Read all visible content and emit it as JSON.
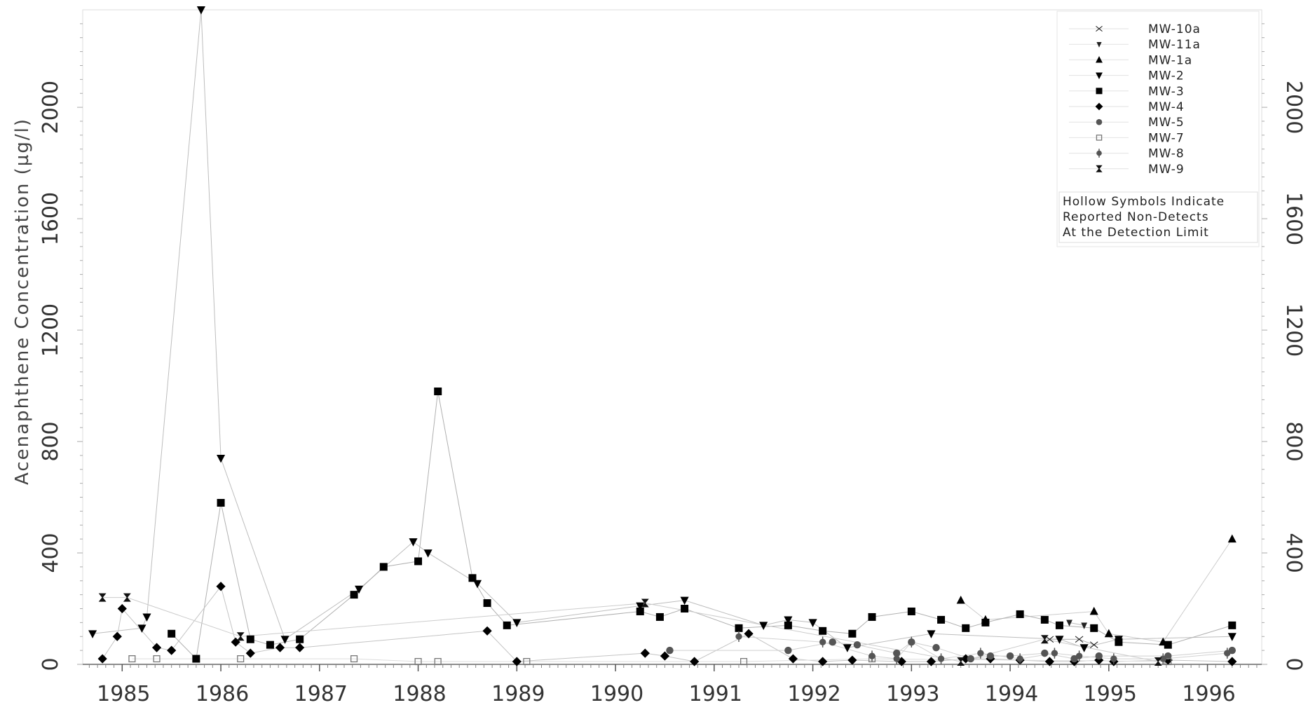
{
  "chart_data": {
    "type": "scatter",
    "title": "",
    "ylabel": "Acenaphthene Concentration (µg/l)",
    "xlabel": "",
    "xlim": [
      1984.6,
      1996.55
    ],
    "ylim": [
      0,
      2350
    ],
    "x_ticks": [
      "1985",
      "1986",
      "1987",
      "1988",
      "1989",
      "1990",
      "1991",
      "1992",
      "1993",
      "1994",
      "1995",
      "1996"
    ],
    "y_ticks": [
      "0",
      "400",
      "800",
      "1200",
      "1600",
      "2000"
    ],
    "y_ticks_right": [
      "0",
      "400",
      "800",
      "1200",
      "1600",
      "2000"
    ],
    "grid": false,
    "legend_position": "top-right",
    "legend_note": [
      "Hollow Symbols Indicate",
      "Reported Non-Detects",
      "At the Detection Limit"
    ],
    "series": [
      {
        "name": "MW-10a",
        "marker": "bowtie",
        "x": [
          1994.4,
          1994.7,
          1994.85
        ],
        "y": [
          90,
          90,
          70
        ]
      },
      {
        "name": "MW-11a",
        "marker": "tri-down-small",
        "x": [
          1994.6,
          1994.75
        ],
        "y": [
          150,
          140
        ]
      },
      {
        "name": "MW-1a",
        "marker": "tri-up",
        "x": [
          1993.5,
          1993.75,
          1994.85,
          1995.0,
          1995.55,
          1996.25
        ],
        "y": [
          230,
          160,
          190,
          110,
          80,
          450
        ]
      },
      {
        "name": "MW-2",
        "marker": "tri-down",
        "x": [
          1984.7,
          1985.2,
          1985.25,
          1985.8,
          1986.0,
          1986.65,
          1987.4,
          1987.95,
          1988.1,
          1988.6,
          1989.0,
          1990.25,
          1990.7,
          1991.5,
          1991.75,
          1992.0,
          1992.35,
          1993.2,
          1994.5,
          1994.75,
          1995.1,
          1996.25
        ],
        "y": [
          110,
          130,
          170,
          2350,
          740,
          90,
          270,
          440,
          400,
          290,
          150,
          210,
          230,
          140,
          160,
          150,
          60,
          110,
          90,
          60,
          90,
          100
        ]
      },
      {
        "name": "MW-3",
        "marker": "square",
        "x": [
          1985.5,
          1985.75,
          1986.0,
          1986.3,
          1986.5,
          1986.8,
          1987.35,
          1987.65,
          1988.0,
          1988.2,
          1988.55,
          1988.7,
          1988.9,
          1990.25,
          1990.45,
          1990.7,
          1991.25,
          1991.75,
          1992.1,
          1992.4,
          1992.6,
          1993.0,
          1993.3,
          1993.55,
          1993.75,
          1994.1,
          1994.35,
          1994.5,
          1994.85,
          1995.1,
          1995.6,
          1996.25
        ],
        "y": [
          110,
          20,
          580,
          90,
          70,
          90,
          250,
          350,
          370,
          980,
          310,
          220,
          140,
          190,
          170,
          200,
          130,
          140,
          120,
          110,
          170,
          190,
          160,
          130,
          150,
          180,
          160,
          140,
          130,
          80,
          70,
          140
        ]
      },
      {
        "name": "MW-4",
        "marker": "diamond",
        "x": [
          1984.8,
          1984.95,
          1985.0,
          1985.35,
          1985.5,
          1986.0,
          1986.15,
          1986.3,
          1986.6,
          1986.8,
          1988.7,
          1989.0,
          1990.3,
          1990.5,
          1990.8,
          1991.35,
          1991.8,
          1992.1,
          1992.4,
          1992.9,
          1993.2,
          1993.55,
          1993.8,
          1994.1,
          1994.4,
          1994.65,
          1994.9,
          1995.05,
          1995.6,
          1996.25
        ],
        "y": [
          20,
          100,
          200,
          60,
          50,
          280,
          80,
          40,
          60,
          60,
          120,
          10,
          40,
          30,
          10,
          110,
          20,
          10,
          15,
          10,
          10,
          20,
          20,
          15,
          10,
          10,
          15,
          10,
          15,
          10
        ]
      },
      {
        "name": "MW-5",
        "marker": "circle",
        "x": [
          1990.55,
          1991.75,
          1992.2,
          1992.45,
          1992.85,
          1993.0,
          1993.25,
          1993.6,
          1993.8,
          1994.0,
          1994.35,
          1994.65,
          1994.9,
          1995.6,
          1996.25
        ],
        "y": [
          50,
          50,
          80,
          70,
          40,
          80,
          60,
          20,
          30,
          30,
          40,
          20,
          30,
          30,
          50
        ]
      },
      {
        "name": "MW-7",
        "marker": "hollow-square",
        "x": [
          1985.1,
          1985.35,
          1986.2,
          1987.35,
          1988.0,
          1988.2,
          1989.1,
          1991.3,
          1992.6,
          1995.6
        ],
        "y": [
          20,
          20,
          20,
          20,
          10,
          10,
          10,
          10,
          20,
          10
        ]
      },
      {
        "name": "MW-8",
        "marker": "circle-bar",
        "x": [
          1991.25,
          1992.1,
          1992.6,
          1992.85,
          1993.0,
          1993.3,
          1993.7,
          1994.1,
          1994.45,
          1994.7,
          1995.05,
          1995.55,
          1996.2
        ],
        "y": [
          100,
          80,
          30,
          20,
          80,
          20,
          40,
          20,
          40,
          30,
          20,
          20,
          40
        ]
      },
      {
        "name": "MW-9",
        "marker": "hourglass",
        "x": [
          1984.8,
          1985.05,
          1986.2,
          1990.3,
          1993.5,
          1994.35,
          1995.5
        ],
        "y": [
          240,
          240,
          100,
          220,
          10,
          90,
          10
        ]
      }
    ]
  }
}
